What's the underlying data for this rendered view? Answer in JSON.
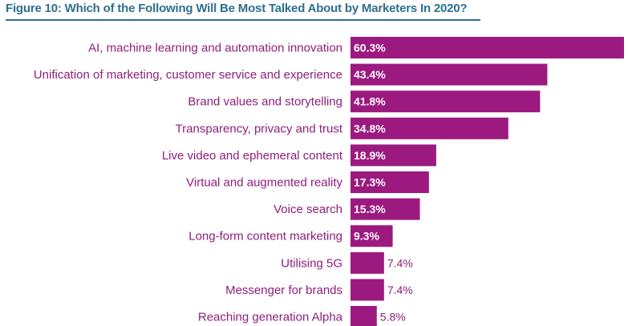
{
  "figure": {
    "title": "Figure 10: Which of the Following Will Be Most Talked About by Marketers In 2020?"
  },
  "colors": {
    "bar": "#9c1a80",
    "label": "#8e1e7c",
    "title": "#2e6f8e"
  },
  "chart_data": {
    "type": "bar",
    "orientation": "horizontal",
    "title": "Figure 10: Which of the Following Will Be Most Talked About by Marketers In 2020?",
    "categories": [
      "AI, machine learning and automation innovation",
      "Unification of marketing, customer service and experience",
      "Brand values and storytelling",
      "Transparency, privacy and trust",
      "Live video and ephemeral content",
      "Virtual and augmented reality",
      "Voice search",
      "Long-form content marketing",
      "Utilising 5G",
      "Messenger for brands",
      "Reaching generation Alpha"
    ],
    "values": [
      60.3,
      43.4,
      41.8,
      34.8,
      18.9,
      17.3,
      15.3,
      9.3,
      7.4,
      7.4,
      5.8
    ],
    "value_labels": [
      "60.3%",
      "43.4%",
      "41.8%",
      "34.8%",
      "18.9%",
      "17.3%",
      "15.3%",
      "9.3%",
      "7.4%",
      "7.4%",
      "5.8%"
    ],
    "xlim": [
      0,
      60.3
    ],
    "grid": false,
    "legend": "none"
  }
}
